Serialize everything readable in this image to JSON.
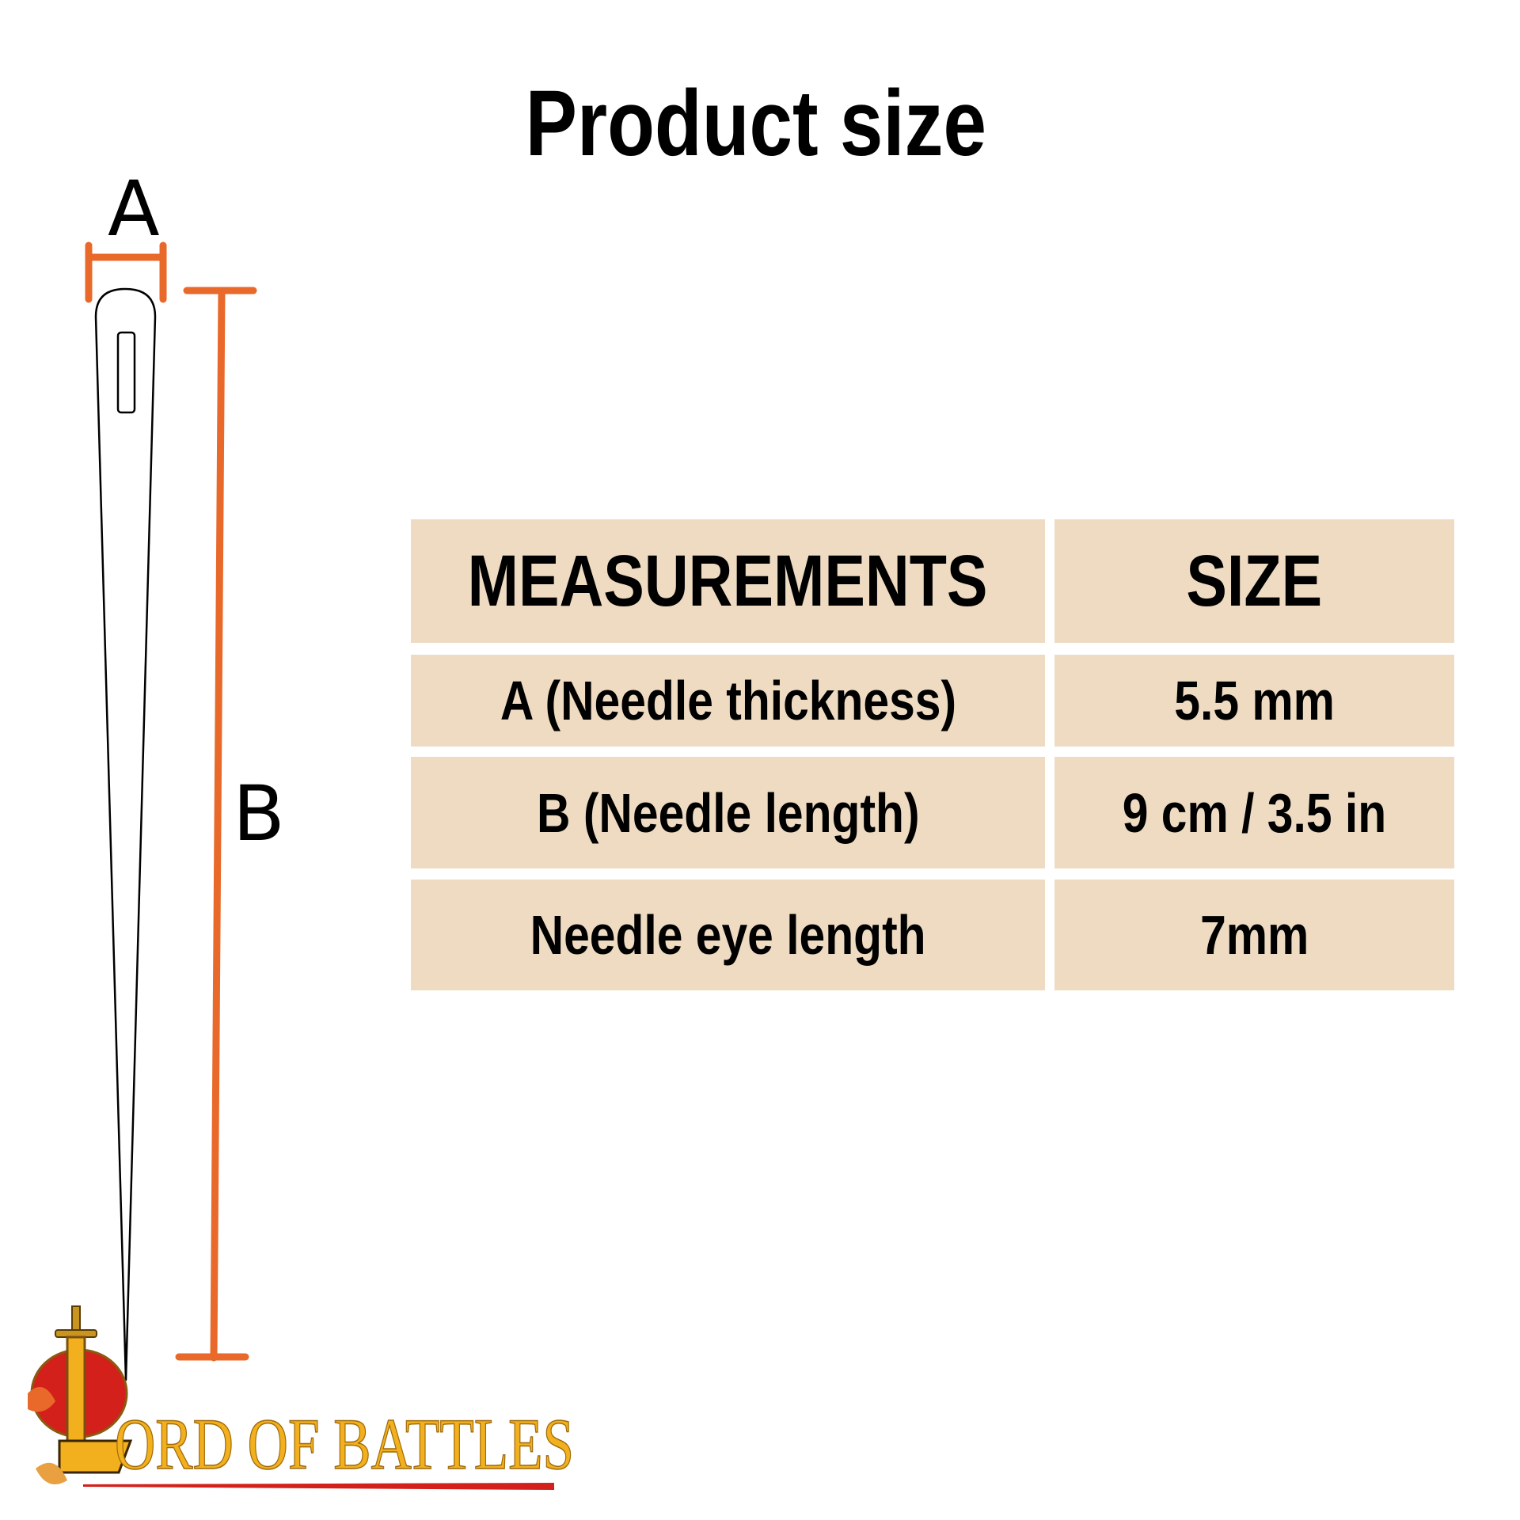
{
  "title": "Product size",
  "diagram": {
    "label_a": "A",
    "label_b": "B",
    "dimension_color": "#E8692A"
  },
  "table": {
    "headers": [
      "MEASUREMENTS",
      "SIZE"
    ],
    "rows": [
      {
        "measurement": "A (Needle thickness)",
        "size": "5.5 mm"
      },
      {
        "measurement": "B (Needle length)",
        "size": "9 cm / 3.5 in"
      },
      {
        "measurement": "Needle eye length",
        "size": "7mm"
      }
    ],
    "cell_color": "#EEDBC2"
  },
  "logo": {
    "text": "LORD OF BATTLES",
    "gold": "#F2B01E",
    "red": "#D3201B"
  }
}
